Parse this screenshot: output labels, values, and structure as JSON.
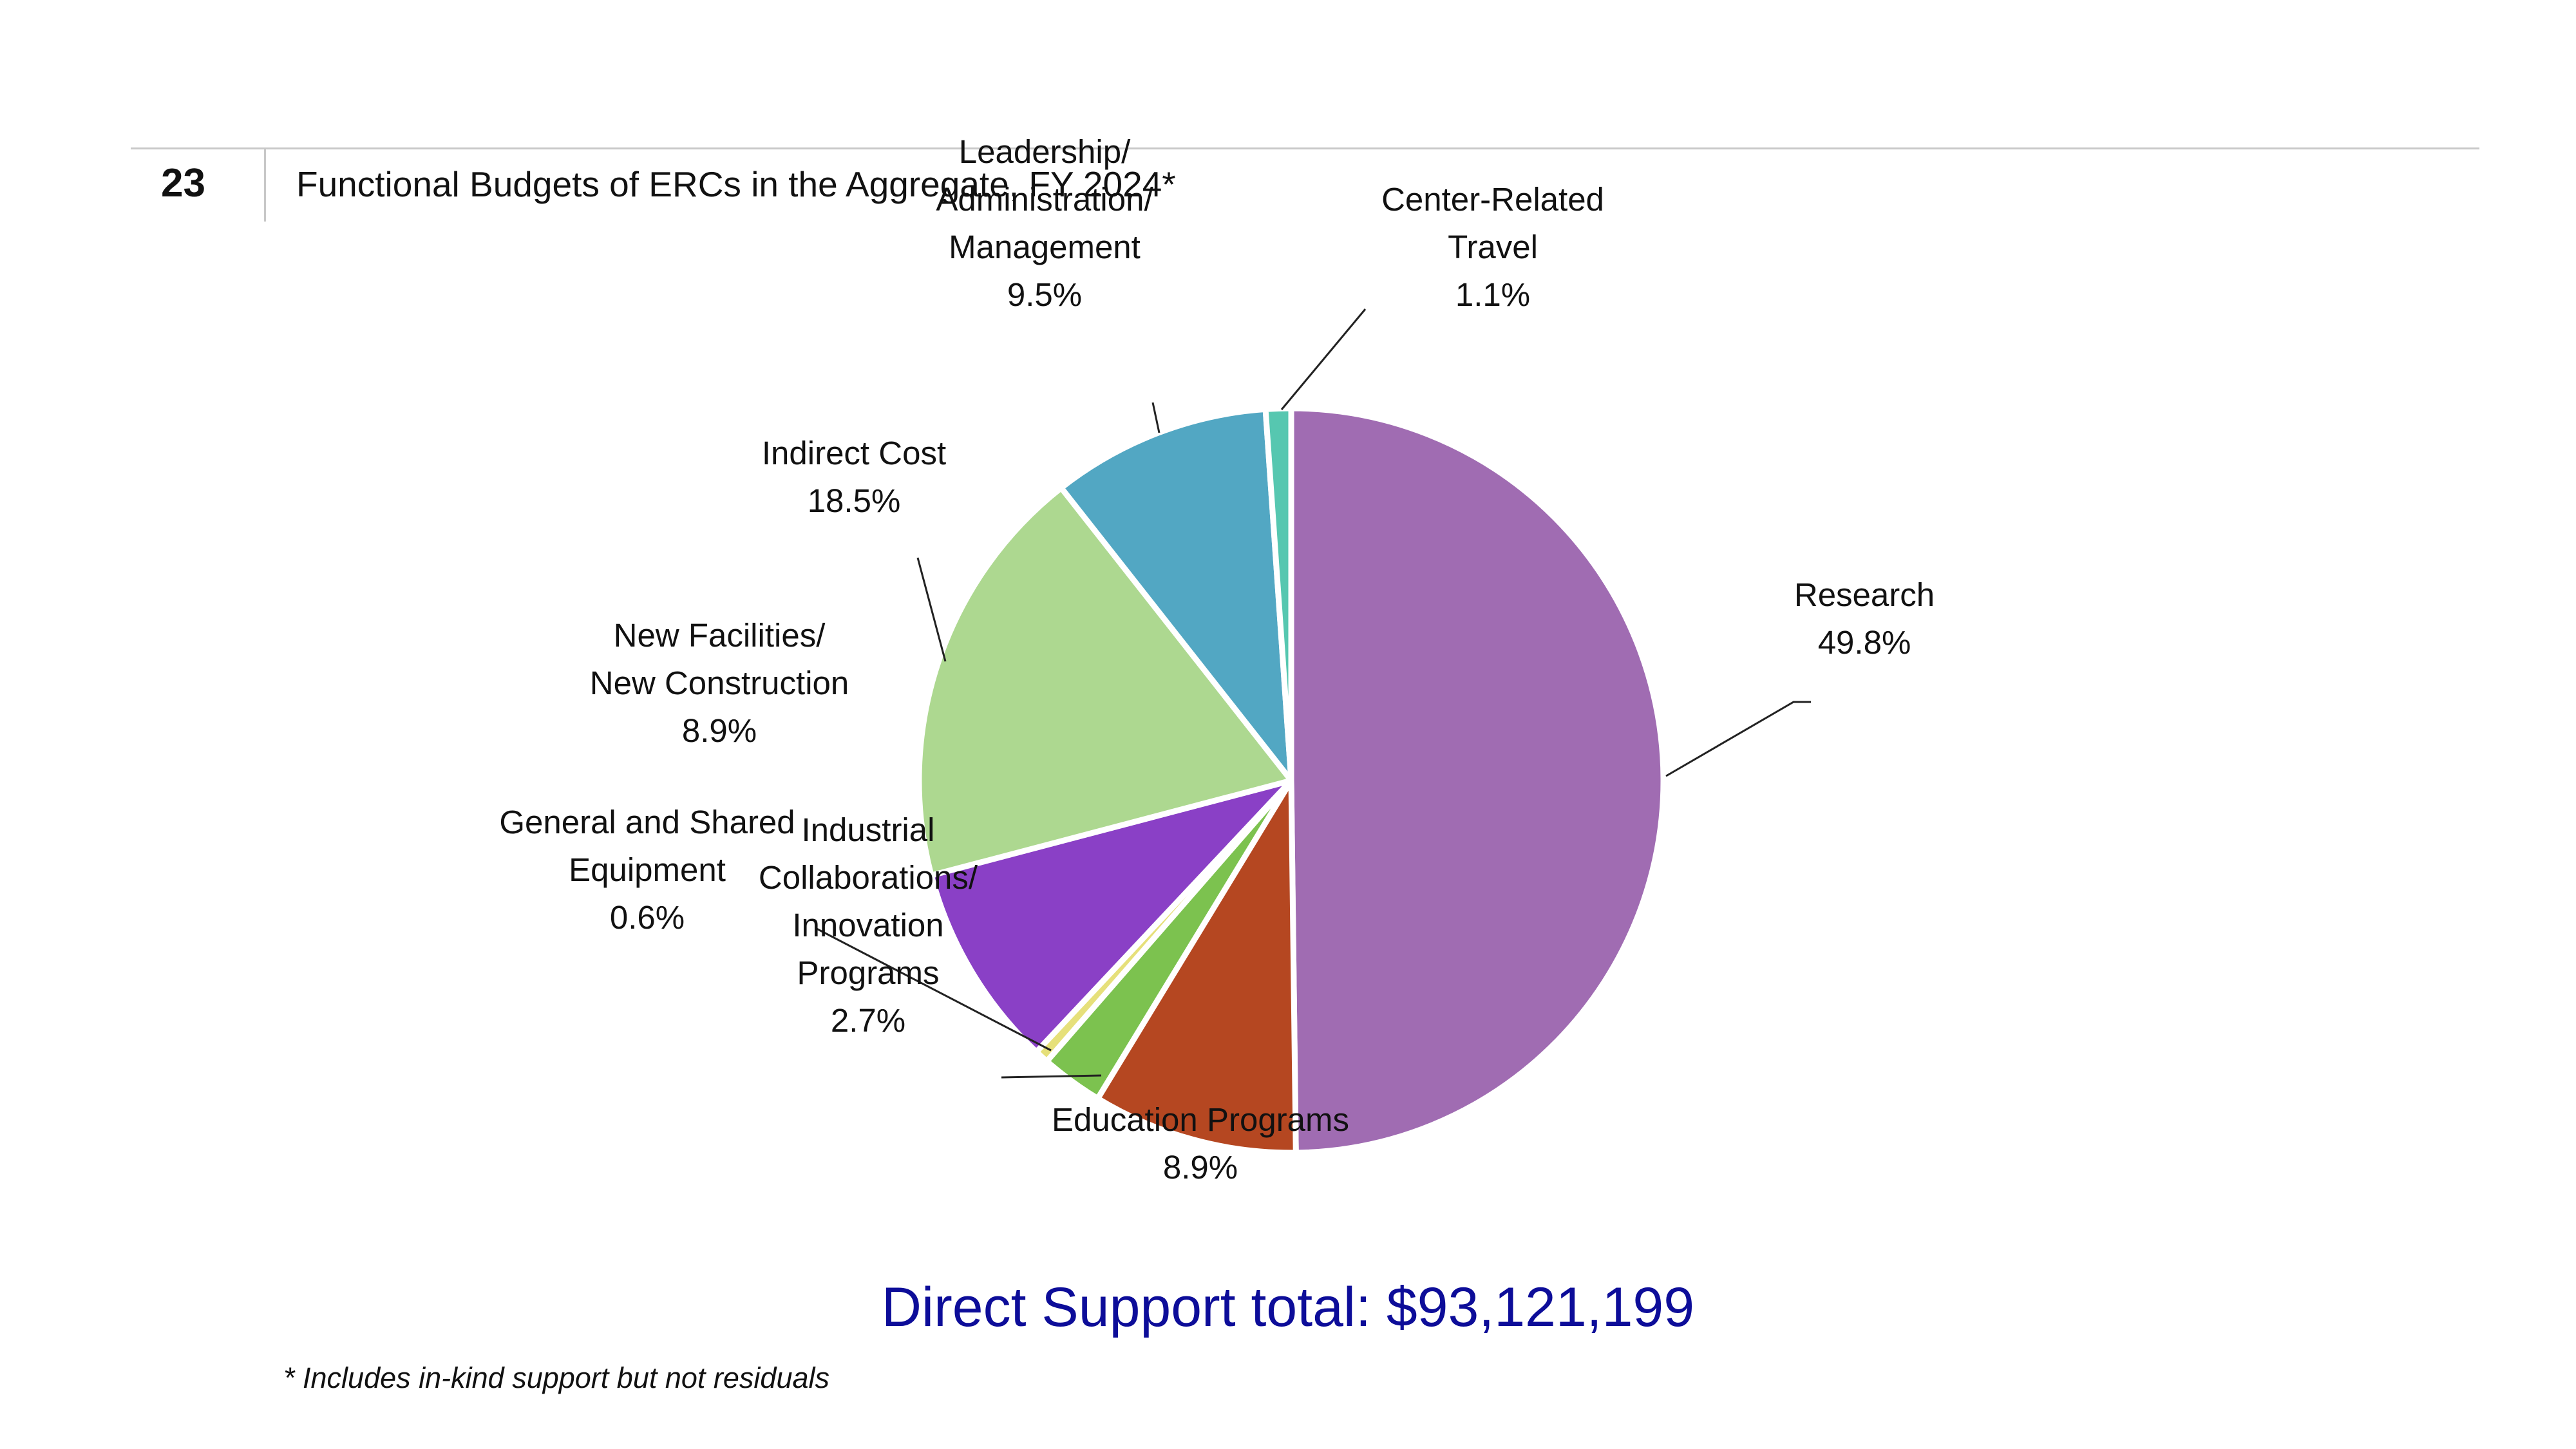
{
  "header": {
    "figure_number": "23",
    "title": "Functional Budgets of ERCs in the Aggregate, FY 2024*"
  },
  "total_label": "Direct Support total: $93,121,199",
  "footnote": "* Includes in-kind support but not residuals",
  "chart_data": {
    "type": "pie",
    "title": "Functional Budgets of ERCs in the Aggregate, FY 2024*",
    "slices": [
      {
        "label_lines": [
          "Research"
        ],
        "value": 49.8,
        "value_label": "49.8%",
        "color": "#a06cb2"
      },
      {
        "label_lines": [
          "Education Programs"
        ],
        "value": 8.9,
        "value_label": "8.9%",
        "color": "#b54721"
      },
      {
        "label_lines": [
          "Industrial",
          "Collaborations/",
          "Innovation",
          "Programs"
        ],
        "value": 2.7,
        "value_label": "2.7%",
        "color": "#7cc24f"
      },
      {
        "label_lines": [
          "General and Shared",
          "Equipment"
        ],
        "value": 0.6,
        "value_label": "0.6%",
        "color": "#e6e07a"
      },
      {
        "label_lines": [
          "New Facilities/",
          "New Construction"
        ],
        "value": 8.9,
        "value_label": "8.9%",
        "color": "#8a40c6"
      },
      {
        "label_lines": [
          "Indirect Cost"
        ],
        "value": 18.5,
        "value_label": "18.5%",
        "color": "#add890"
      },
      {
        "label_lines": [
          "Leadership/",
          "Administration/",
          "Management"
        ],
        "value": 9.5,
        "value_label": "9.5%",
        "color": "#52a7c3"
      },
      {
        "label_lines": [
          "Center-Related",
          "Travel"
        ],
        "value": 1.1,
        "value_label": "1.1%",
        "color": "#56c7b0"
      }
    ]
  }
}
